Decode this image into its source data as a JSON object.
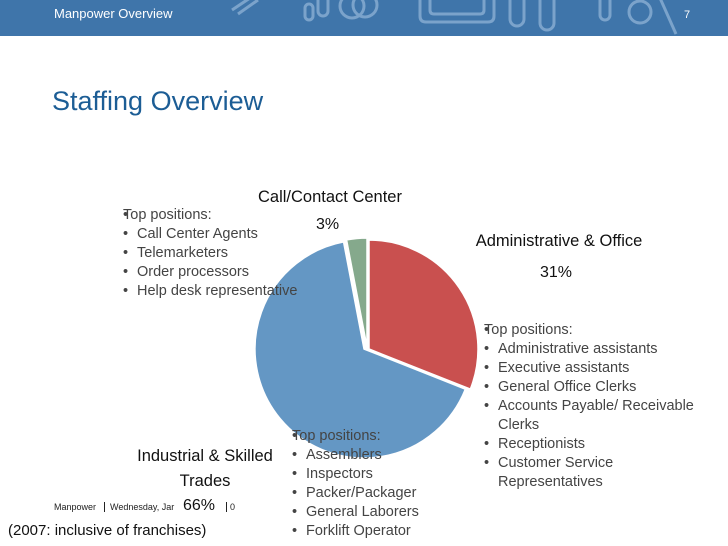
{
  "header": {
    "title": "Manpower Overview",
    "page_number": "7",
    "bg_color": "#3f75aa"
  },
  "slide": {
    "title": "Staffing Overview"
  },
  "chart_data": {
    "type": "pie",
    "slices": [
      {
        "label": "Administrative & Office",
        "percent_label": "31%",
        "value": 31,
        "color": "#c9504f"
      },
      {
        "label": "Industrial & Skilled Trades",
        "percent_label": "66%",
        "value": 66,
        "color": "#6497c4"
      },
      {
        "label": "Call/Contact Center",
        "percent_label": "3%",
        "value": 3,
        "color": "#85a98c"
      }
    ]
  },
  "positions": {
    "call_center": {
      "heading": "Top positions:",
      "items": [
        "Call Center Agents",
        "Telemarketers",
        "Order processors",
        "Help desk representative"
      ]
    },
    "admin": {
      "heading": "Top positions:",
      "items": [
        "Administrative assistants",
        "Executive assistants",
        "General Office Clerks",
        "Accounts Payable/ Receivable Clerks",
        "Receptionists",
        "Customer Service Representatives"
      ]
    },
    "industrial": {
      "heading": "Top positions:",
      "items": [
        "Assemblers",
        "Inspectors",
        "Packer/Packager",
        "General Laborers",
        "Forklift Operator"
      ]
    }
  },
  "footer": {
    "company": "Manpower",
    "date": "Wednesday, Jar",
    "page_fragment": "0"
  },
  "note": "(2007: inclusive of franchises)"
}
